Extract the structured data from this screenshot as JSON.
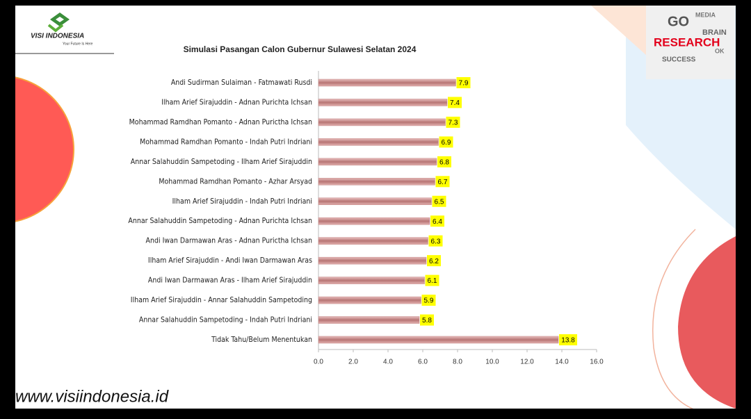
{
  "slide": {
    "logo": {
      "name": "VISI INDONESIA",
      "tagline": "Your Future Is Here"
    },
    "website": "www.visiindonesia.id",
    "research_words": [
      "GO",
      "BRAIN",
      "RESEARCH",
      "SUCCESS",
      "MEDIA",
      "OK"
    ]
  },
  "chart_data": {
    "type": "bar",
    "orientation": "horizontal",
    "title": "Simulasi Pasangan Calon Gubernur Sulawesi Selatan 2024",
    "categories": [
      "Andi Sudirman Sulaiman - Fatmawati Rusdi",
      "Ilham Arief Sirajuddin - Adnan Purichta Ichsan",
      "Mohammad Ramdhan Pomanto - Adnan Purictha Ichsan",
      "Mohammad Ramdhan Pomanto - Indah Putri Indriani",
      "Annar Salahuddin Sampetoding - Ilham Arief Sirajuddin",
      "Mohammad Ramdhan Pomanto - Azhar Arsyad",
      "Ilham Arief Sirajuddin - Indah Putri Indriani",
      "Annar Salahuddin Sampetoding - Adnan Purichta Ichsan",
      "Andi Iwan Darmawan Aras - Adnan Purictha Ichsan",
      "Ilham Arief Sirajuddin - Andi Iwan Darmawan Aras",
      "Andi Iwan Darmawan Aras - Ilham Arief Sirajuddin",
      "Ilham Arief Sirajuddin - Annar Salahuddin Sampetoding",
      "Annar Salahuddin Sampetoding - Indah Putri Indriani",
      "Tidak Tahu/Belum Menentukan"
    ],
    "values": [
      7.9,
      7.4,
      7.3,
      6.9,
      6.8,
      6.7,
      6.5,
      6.4,
      6.3,
      6.2,
      6.1,
      5.9,
      5.8,
      13.8
    ],
    "color": "#c48584",
    "value_label_color": "#ffff00",
    "xlim": [
      0,
      16
    ],
    "xticks": [
      {
        "value": 0,
        "label": "0.0"
      },
      {
        "value": 2,
        "label": "2.0"
      },
      {
        "value": 4,
        "label": "4.0"
      },
      {
        "value": 6,
        "label": "6.0"
      },
      {
        "value": 8,
        "label": "8.0"
      },
      {
        "value": 10,
        "label": "10.0"
      },
      {
        "value": 12,
        "label": "12.0"
      },
      {
        "value": 14,
        "label": "14.0"
      },
      {
        "value": 16,
        "label": "16.0"
      }
    ],
    "grid": false
  }
}
